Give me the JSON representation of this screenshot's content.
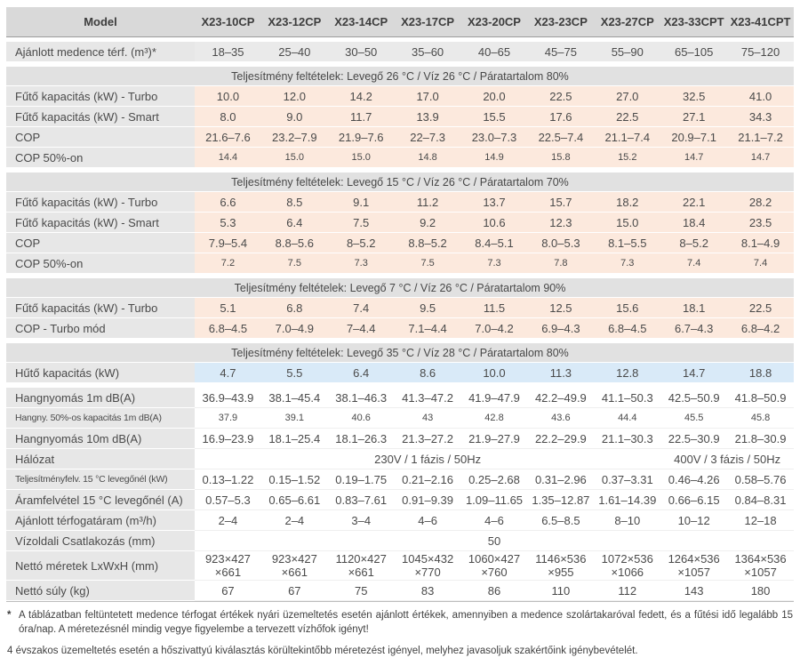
{
  "colors": {
    "header_bg": "#d9d9d9",
    "section_bg": "#e1e1e1",
    "label_bg": "#e7e7e7",
    "gray_row": "#eaeaea",
    "peach": "#fce9dd",
    "blue": "#d9eaf8"
  },
  "table": {
    "header": {
      "label": "Model",
      "models": [
        "X23-10CP",
        "X23-12CP",
        "X23-14CP",
        "X23-17CP",
        "X23-20CP",
        "X23-23CP",
        "X23-27CP",
        "X23-33CPT",
        "X23-41CPT"
      ]
    },
    "rows": [
      {
        "type": "data",
        "gap": true,
        "bg": "gray",
        "label": "Ajánlott medence térf. (m³)*",
        "cells": [
          "18–35",
          "25–40",
          "30–50",
          "35–60",
          "40–65",
          "45–75",
          "55–90",
          "65–105",
          "75–120"
        ]
      },
      {
        "type": "section",
        "gap": true,
        "label": "Teljesítmény feltételek: Levegő 26 °C / Víz 26 °C / Páratartalom 80%"
      },
      {
        "type": "data",
        "bg": "peach",
        "label": "Fűtő kapacitás (kW) - Turbo",
        "cells": [
          "10.0",
          "12.0",
          "14.2",
          "17.0",
          "20.0",
          "22.5",
          "27.0",
          "32.5",
          "41.0"
        ]
      },
      {
        "type": "data",
        "bg": "peach",
        "label": "Fűtő kapacitás (kW) - Smart",
        "cells": [
          "8.0",
          "9.0",
          "11.7",
          "13.9",
          "15.5",
          "17.6",
          "22.5",
          "27.1",
          "34.3"
        ]
      },
      {
        "type": "data",
        "bg": "peach",
        "label": "COP",
        "cells": [
          "21.6–7.6",
          "23.2–7.9",
          "21.9–7.6",
          "22–7.3",
          "23.0–7.3",
          "22.5–7.4",
          "21.1–7.4",
          "20.9–7.1",
          "21.1–7.2"
        ]
      },
      {
        "type": "data",
        "bg": "peach",
        "dataSmall": true,
        "label": "COP 50%-on",
        "cells": [
          "14.4",
          "15.0",
          "15.0",
          "14.8",
          "14.9",
          "15.8",
          "15.2",
          "14.7",
          "14.7"
        ]
      },
      {
        "type": "section",
        "gap": true,
        "label": "Teljesítmény feltételek: Levegő 15 °C / Víz 26 °C / Páratartalom 70%"
      },
      {
        "type": "data",
        "bg": "peach",
        "label": "Fűtő kapacitás (kW) - Turbo",
        "cells": [
          "6.6",
          "8.5",
          "9.1",
          "11.2",
          "13.7",
          "15.7",
          "18.2",
          "22.1",
          "28.2"
        ]
      },
      {
        "type": "data",
        "bg": "peach",
        "label": "Fűtő kapacitás (kW) - Smart",
        "cells": [
          "5.3",
          "6.4",
          "7.5",
          "9.2",
          "10.6",
          "12.3",
          "15.0",
          "18.4",
          "23.5"
        ]
      },
      {
        "type": "data",
        "bg": "peach",
        "label": "COP",
        "cells": [
          "7.9–5.4",
          "8.8–5.6",
          "8–5.2",
          "8.8–5.2",
          "8.4–5.1",
          "8.0–5.3",
          "8.1–5.5",
          "8–5.2",
          "8.1–4.9"
        ]
      },
      {
        "type": "data",
        "bg": "peach",
        "dataSmall": true,
        "label": "COP 50%-on",
        "cells": [
          "7.2",
          "7.5",
          "7.3",
          "7.5",
          "7.3",
          "7.8",
          "7.3",
          "7.4",
          "7.4"
        ]
      },
      {
        "type": "section",
        "gap": true,
        "label": "Teljesítmény feltételek: Levegő 7 °C / Víz 26 °C / Páratartalom 90%"
      },
      {
        "type": "data",
        "bg": "peach",
        "label": "Fűtő kapacitás (kW) - Turbo",
        "cells": [
          "5.1",
          "6.8",
          "7.4",
          "9.5",
          "11.5",
          "12.5",
          "15.6",
          "18.1",
          "22.5"
        ]
      },
      {
        "type": "data",
        "bg": "peach",
        "label": "COP - Turbo mód",
        "cells": [
          "6.8–4.5",
          "7.0–4.9",
          "7–4.4",
          "7.1–4.4",
          "7.0–4.2",
          "6.9–4.3",
          "6.8–4.5",
          "6.7–4.3",
          "6.8–4.2"
        ]
      },
      {
        "type": "section",
        "gap": true,
        "label": "Teljesítmény feltételek: Levegő 35 °C / Víz 28 °C / Páratartalom 80%"
      },
      {
        "type": "data",
        "bg": "blue",
        "label": "Hűtő kapacitás (kW)",
        "cells": [
          "4.7",
          "5.5",
          "6.4",
          "8.6",
          "10.0",
          "11.3",
          "12.8",
          "14.7",
          "18.8"
        ]
      },
      {
        "type": "data",
        "gap": true,
        "bg": "white",
        "label": "Hangnyomás 1m dB(A)",
        "cells": [
          "36.9–43.9",
          "38.1–45.4",
          "38.1–46.3",
          "41.3–47.2",
          "41.9–47.9",
          "42.2–49.9",
          "41.1–50.3",
          "42.5–50.9",
          "41.8–50.9"
        ]
      },
      {
        "type": "data",
        "bg": "white",
        "labelSmall": true,
        "dataSmall": true,
        "label": "Hangny. 50%-os kapacitás 1m dB(A)",
        "cells": [
          "37.9",
          "39.1",
          "40.6",
          "43",
          "42.8",
          "43.6",
          "44.4",
          "45.5",
          "45.8"
        ]
      },
      {
        "type": "data",
        "bg": "white",
        "label": "Hangnyomás 10m dB(A)",
        "cells": [
          "16.9–23.9",
          "18.1–25.4",
          "18.1–26.3",
          "21.3–27.2",
          "21.9–27.9",
          "22.2–29.9",
          "21.1–30.3",
          "22.5–30.9",
          "21.8–30.9"
        ]
      },
      {
        "type": "data",
        "bg": "white",
        "label": "Hálózat",
        "spans": [
          {
            "text": "230V / 1 fázis / 50Hz",
            "span": 7
          },
          {
            "text": "400V / 3 fázis / 50Hz",
            "span": 2
          }
        ]
      },
      {
        "type": "data",
        "bg": "white",
        "labelSmall": true,
        "label": "Teljesítményfelv. 15 °C levegőnél (kW)",
        "cells": [
          "0.13–1.22",
          "0.15–1.52",
          "0.19–1.75",
          "0.21–2.16",
          "0.25–2.68",
          "0.31–2.96",
          "0.37–3.31",
          "0.46–4.26",
          "0.58–5.76"
        ]
      },
      {
        "type": "data",
        "bg": "white",
        "label": "Áramfelvétel 15 °C levegőnél (A)",
        "cells": [
          "0.57–5.3",
          "0.65–6.61",
          "0.83–7.61",
          "0.91–9.39",
          "1.09–11.65",
          "1.35–12.87",
          "1.61–14.39",
          "0.66–6.15",
          "0.84–8.31"
        ]
      },
      {
        "type": "data",
        "bg": "white",
        "label": "Ajánlott térfogatáram (m³/h)",
        "cells": [
          "2–4",
          "2–4",
          "3–4",
          "4–6",
          "4–6",
          "6.5–8.5",
          "8–10",
          "10–12",
          "12–18"
        ]
      },
      {
        "type": "data",
        "bg": "white",
        "label": "Vízoldali Csatlakozás (mm)",
        "spans": [
          {
            "text": "50",
            "span": 9
          }
        ]
      },
      {
        "type": "data",
        "bg": "white",
        "label": "Nettó méretek LxWxH (mm)",
        "cells": [
          "923×427|×661",
          "923×427|×661",
          "1120×427|×661",
          "1045×432|×770",
          "1060×427|×760",
          "1146×536|×955",
          "1072×536|×1066",
          "1264×536|×1057",
          "1364×536|×1057"
        ]
      },
      {
        "type": "data",
        "bg": "white",
        "label": "Nettó súly (kg)",
        "cells": [
          "67",
          "67",
          "75",
          "83",
          "86",
          "110",
          "112",
          "143",
          "180"
        ]
      }
    ]
  },
  "footnotes": {
    "star": "*",
    "note1": "A táblázatban feltüntetett medence térfogat értékek nyári üzemeltetés esetén ajánlott értékek, amennyiben a medence szolártakaróval fedett, és a fűtési idő legalább 15 óra/nap. A méretezésnél mindig vegye figyelembe a tervezett vízhőfok igényt!",
    "note2": "4 évszakos üzemeltetés esetén a hőszivattyú kiválasztás körültekintőbb méretezést igényel, melyhez javasoljuk szakértőink igénybevételét."
  }
}
